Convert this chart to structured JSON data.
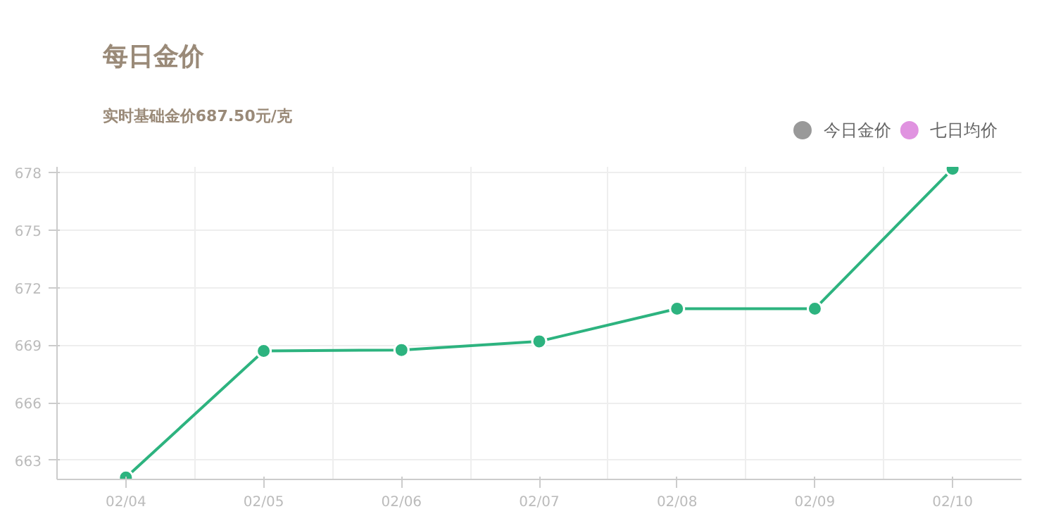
{
  "chart_data": {
    "type": "line",
    "title": "每日金价",
    "subtitle": "实时基础金价687.50元/克",
    "categories": [
      "02/04",
      "02/05",
      "02/06",
      "02/07",
      "02/08",
      "02/09",
      "02/10"
    ],
    "series": [
      {
        "color": "#2db37f",
        "values": [
          662.1,
          668.7,
          668.75,
          669.2,
          670.9,
          670.9,
          678.2
        ]
      },
      {
        "name": "今日金价",
        "color": "#999999",
        "values": [
          null,
          null,
          null,
          null,
          null,
          null,
          null
        ]
      },
      {
        "name": "七日均价",
        "color": "#e093e0",
        "values": [
          null,
          null,
          null,
          null,
          null,
          null,
          null
        ]
      }
    ],
    "ylim": [
      662,
      678.3
    ],
    "yticks": [
      663,
      666,
      669,
      672,
      675,
      678
    ],
    "grid": true,
    "legend": "top right",
    "marker": "circle",
    "line_style": "solid"
  }
}
